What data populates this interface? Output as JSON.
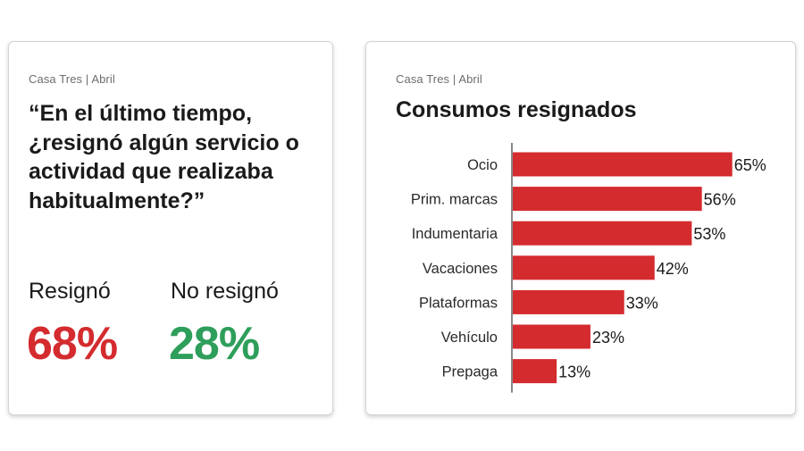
{
  "left_card": {
    "source": "Casa Tres | Abril",
    "question": "“En el último tiempo, ¿resignó algún servicio o actividad que realizaba habitualmente?”",
    "resigno": {
      "label": "Resignó",
      "value": "68%",
      "color": "#d42b2f"
    },
    "no_resigno": {
      "label": "No resignó",
      "value": "28%",
      "color": "#2e9e5b"
    }
  },
  "right_card": {
    "source": "Casa Tres | Abril"
  },
  "chart_data": {
    "type": "bar",
    "orientation": "horizontal",
    "title": "Consumos resignados",
    "categories": [
      "Ocio",
      "Prim. marcas",
      "Indumentaria",
      "Vacaciones",
      "Plataformas",
      "Vehículo",
      "Prepaga"
    ],
    "values": [
      65,
      56,
      53,
      42,
      33,
      23,
      13
    ],
    "value_labels": [
      "65%",
      "56%",
      "53%",
      "42%",
      "33%",
      "23%",
      "13%"
    ],
    "unit": "%",
    "xlim": [
      0,
      100
    ],
    "bar_color": "#d42b2f",
    "grid": false,
    "legend": "none"
  }
}
